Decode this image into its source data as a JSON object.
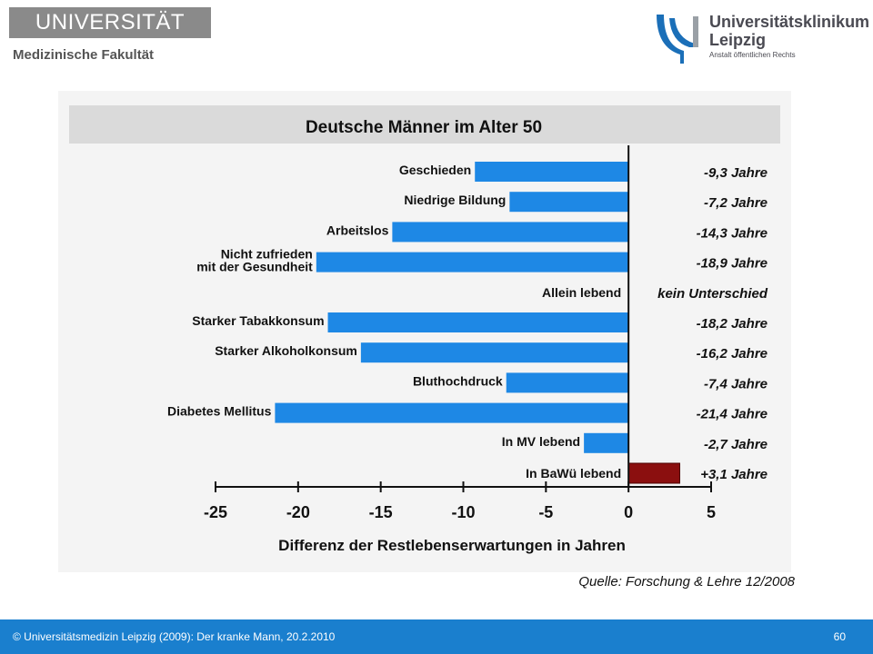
{
  "header": {
    "left_logo_text": "UNIVERSITÄT LEIPZIG",
    "left_logo_subtext": "Medizinische Fakultät",
    "right_logo_line1": "Universitätsklinikum",
    "right_logo_line2": "Leipzig",
    "right_logo_line3": "Anstalt öffentlichen Rechts",
    "right_logo_icon": "ul-logo-icon"
  },
  "chart_data": {
    "type": "bar",
    "orientation": "horizontal",
    "title": "Deutsche Männer im Alter 50",
    "xlabel": "Differenz der Restlebenserwartungen in Jahren",
    "xlim": [
      -25,
      5
    ],
    "xticks": [
      "-25",
      "-20",
      "-15",
      "-10",
      "-5",
      "0",
      "5"
    ],
    "categories": [
      [
        "Geschieden"
      ],
      [
        "Niedrige Bildung"
      ],
      [
        "Arbeitslos"
      ],
      [
        "Nicht zufrieden",
        "mit der Gesundheit"
      ],
      [
        "Allein lebend"
      ],
      [
        "Starker Tabakkonsum"
      ],
      [
        "Starker Alkoholkonsum"
      ],
      [
        "Bluthochdruck"
      ],
      [
        "Diabetes Mellitus"
      ],
      [
        "In MV lebend"
      ],
      [
        "In BaWü lebend"
      ]
    ],
    "values": [
      -9.3,
      -7.2,
      -14.3,
      -18.9,
      0,
      -18.2,
      -16.2,
      -7.4,
      -21.4,
      -2.7,
      3.1
    ],
    "value_labels": [
      "-9,3 Jahre",
      "-7,2 Jahre",
      "-14,3 Jahre",
      "-18,9 Jahre",
      "kein Unterschied",
      "-18,2 Jahre",
      "-16,2 Jahre",
      "-7,4 Jahre",
      "-21,4 Jahre",
      "-2,7 Jahre",
      "+3,1 Jahre"
    ],
    "colors": {
      "negative": "#1e88e5",
      "positive": "#8b0f0f"
    }
  },
  "source": "Quelle: Forschung & Lehre 12/2008",
  "footer": {
    "text": "© Universitätsmedizin Leipzig (2009): Der kranke Mann, 20.2.2010",
    "page": "60"
  }
}
